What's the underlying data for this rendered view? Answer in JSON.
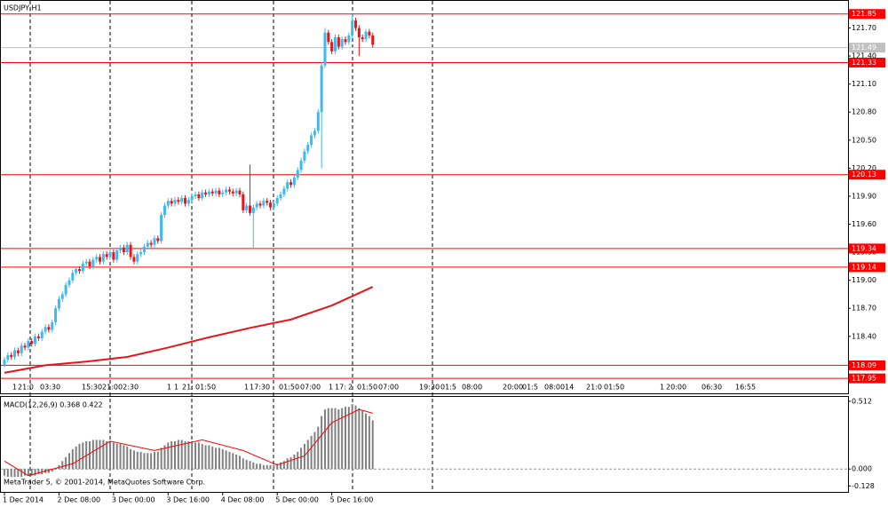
{
  "chart_data": {
    "type": "candlestick",
    "title": "USDJPY,H1",
    "up_color": "#3cb9ef",
    "down_color": "#e8141a",
    "categories": [
      "1 Dec 2014",
      null,
      null,
      null,
      null,
      null,
      null,
      null,
      null,
      null,
      null,
      null,
      null,
      null,
      null,
      null,
      "2 Dec 08:00",
      null,
      null,
      null,
      null,
      null,
      null,
      null,
      null,
      null,
      null,
      null,
      null,
      null,
      null,
      null,
      "3 Dec 00:00",
      null,
      null,
      null,
      null,
      null,
      null,
      null,
      null,
      null,
      null,
      null,
      null,
      null,
      null,
      null,
      "3 Dec 16:00",
      null,
      null,
      null,
      null,
      null,
      null,
      null,
      null,
      null,
      null,
      null,
      null,
      null,
      null,
      null,
      "4 Dec 08:00",
      null,
      null,
      null,
      null,
      null,
      null,
      null,
      null,
      null,
      null,
      null,
      null,
      null,
      null,
      null,
      "5 Dec 00:00",
      null,
      null,
      null,
      null,
      null,
      null,
      null,
      null,
      null,
      null,
      null,
      null,
      null,
      null,
      null,
      "5 Dec 16:00",
      null,
      null,
      null,
      null,
      null,
      null,
      null,
      null,
      null,
      null,
      null,
      null
    ],
    "candles": [
      [
        118.1,
        118.18,
        118.07,
        118.15
      ],
      [
        118.15,
        118.23,
        118.12,
        118.2
      ],
      [
        118.2,
        118.23,
        118.15,
        118.18
      ],
      [
        118.18,
        118.28,
        118.15,
        118.25
      ],
      [
        118.25,
        118.28,
        118.19,
        118.22
      ],
      [
        118.22,
        118.33,
        118.19,
        118.3
      ],
      [
        118.3,
        118.33,
        118.25,
        118.28
      ],
      [
        118.28,
        118.38,
        118.25,
        118.35
      ],
      [
        118.35,
        118.38,
        118.29,
        118.32
      ],
      [
        118.32,
        118.43,
        118.29,
        118.4
      ],
      [
        118.4,
        118.43,
        118.35,
        118.38
      ],
      [
        118.38,
        118.48,
        118.35,
        118.45
      ],
      [
        118.45,
        118.53,
        118.42,
        118.5
      ],
      [
        118.5,
        118.53,
        118.44,
        118.47
      ],
      [
        118.47,
        118.58,
        118.44,
        118.55
      ],
      [
        118.55,
        118.73,
        118.52,
        118.7
      ],
      [
        118.7,
        118.83,
        118.67,
        118.8
      ],
      [
        118.8,
        118.88,
        118.77,
        118.85
      ],
      [
        118.85,
        118.98,
        118.82,
        118.95
      ],
      [
        118.95,
        119.03,
        118.92,
        119.0
      ],
      [
        119.0,
        119.11,
        118.97,
        119.08
      ],
      [
        119.08,
        119.15,
        119.05,
        119.12
      ],
      [
        119.12,
        119.15,
        119.07,
        119.1
      ],
      [
        119.1,
        119.21,
        119.07,
        119.18
      ],
      [
        119.18,
        119.23,
        119.15,
        119.2
      ],
      [
        119.2,
        119.23,
        119.12,
        119.15
      ],
      [
        119.15,
        119.25,
        119.12,
        119.22
      ],
      [
        119.22,
        119.28,
        119.19,
        119.25
      ],
      [
        119.25,
        119.28,
        119.17,
        119.2
      ],
      [
        119.2,
        119.31,
        119.17,
        119.28
      ],
      [
        119.28,
        119.31,
        119.22,
        119.25
      ],
      [
        119.25,
        119.33,
        119.22,
        119.3
      ],
      [
        119.3,
        119.33,
        119.19,
        119.22
      ],
      [
        119.22,
        119.35,
        119.19,
        119.32
      ],
      [
        119.32,
        119.38,
        119.29,
        119.35
      ],
      [
        119.35,
        119.38,
        119.27,
        119.3
      ],
      [
        119.3,
        119.41,
        119.27,
        119.38
      ],
      [
        119.38,
        119.41,
        119.22,
        119.25
      ],
      [
        119.25,
        119.28,
        119.17,
        119.2
      ],
      [
        119.2,
        119.31,
        119.17,
        119.28
      ],
      [
        119.28,
        119.33,
        119.25,
        119.3
      ],
      [
        119.3,
        119.39,
        119.27,
        119.36
      ],
      [
        119.36,
        119.43,
        119.33,
        119.4
      ],
      [
        119.4,
        119.43,
        119.35,
        119.38
      ],
      [
        119.38,
        119.48,
        119.35,
        119.45
      ],
      [
        119.45,
        119.48,
        119.39,
        119.42
      ],
      [
        119.42,
        119.73,
        119.39,
        119.7
      ],
      [
        119.7,
        119.83,
        119.67,
        119.8
      ],
      [
        119.8,
        119.88,
        119.77,
        119.85
      ],
      [
        119.85,
        119.88,
        119.79,
        119.82
      ],
      [
        119.82,
        119.89,
        119.79,
        119.86
      ],
      [
        119.86,
        119.89,
        119.81,
        119.84
      ],
      [
        119.84,
        119.91,
        119.81,
        119.88
      ],
      [
        119.88,
        119.91,
        119.79,
        119.82
      ],
      [
        119.82,
        119.89,
        119.79,
        119.86
      ],
      [
        119.86,
        119.93,
        119.83,
        119.9
      ],
      [
        119.9,
        119.95,
        119.87,
        119.92
      ],
      [
        119.92,
        119.95,
        119.85,
        119.88
      ],
      [
        119.88,
        119.97,
        119.85,
        119.94
      ],
      [
        119.94,
        119.97,
        119.89,
        119.92
      ],
      [
        119.92,
        119.98,
        119.89,
        119.95
      ],
      [
        119.95,
        119.98,
        119.9,
        119.93
      ],
      [
        119.93,
        119.99,
        119.9,
        119.96
      ],
      [
        119.96,
        119.99,
        119.89,
        119.92
      ],
      [
        119.92,
        119.97,
        119.89,
        119.94
      ],
      [
        119.94,
        120.0,
        119.91,
        119.97
      ],
      [
        119.97,
        120.0,
        119.92,
        119.95
      ],
      [
        119.95,
        119.98,
        119.9,
        119.93
      ],
      [
        119.93,
        119.99,
        119.9,
        119.96
      ],
      [
        119.96,
        119.99,
        119.89,
        119.92
      ],
      [
        119.92,
        119.95,
        119.72,
        119.75
      ],
      [
        119.75,
        119.83,
        119.72,
        119.8
      ],
      [
        119.8,
        120.24,
        119.69,
        119.72
      ],
      [
        119.72,
        119.81,
        119.35,
        119.78
      ],
      [
        119.78,
        119.85,
        119.75,
        119.82
      ],
      [
        119.82,
        119.85,
        119.77,
        119.8
      ],
      [
        119.8,
        119.88,
        119.77,
        119.85
      ],
      [
        119.85,
        119.88,
        119.8,
        119.83
      ],
      [
        119.83,
        119.86,
        119.75,
        119.78
      ],
      [
        119.78,
        119.85,
        119.75,
        119.82
      ],
      [
        119.82,
        119.91,
        119.79,
        119.88
      ],
      [
        119.88,
        119.95,
        119.85,
        119.92
      ],
      [
        119.92,
        120.01,
        119.89,
        119.98
      ],
      [
        119.98,
        120.08,
        119.95,
        120.05
      ],
      [
        120.05,
        120.08,
        119.99,
        120.02
      ],
      [
        120.02,
        120.13,
        119.99,
        120.1
      ],
      [
        120.1,
        120.21,
        120.07,
        120.18
      ],
      [
        120.18,
        120.31,
        120.15,
        120.28
      ],
      [
        120.28,
        120.41,
        120.25,
        120.38
      ],
      [
        120.38,
        120.48,
        120.35,
        120.45
      ],
      [
        120.45,
        120.58,
        120.42,
        120.55
      ],
      [
        120.55,
        120.63,
        120.52,
        120.6
      ],
      [
        120.6,
        120.83,
        120.57,
        120.8
      ],
      [
        120.8,
        121.33,
        120.2,
        121.3
      ],
      [
        121.3,
        121.7,
        121.27,
        121.65
      ],
      [
        121.65,
        121.68,
        121.52,
        121.55
      ],
      [
        121.55,
        121.58,
        121.42,
        121.45
      ],
      [
        121.45,
        121.63,
        121.42,
        121.6
      ],
      [
        121.6,
        121.63,
        121.47,
        121.5
      ],
      [
        121.5,
        121.61,
        121.47,
        121.58
      ],
      [
        121.58,
        121.61,
        121.52,
        121.55
      ],
      [
        121.55,
        121.65,
        121.52,
        121.62
      ],
      [
        121.62,
        121.85,
        121.59,
        121.78
      ],
      [
        121.78,
        121.81,
        121.67,
        121.7
      ],
      [
        121.7,
        121.73,
        121.4,
        121.6
      ],
      [
        121.6,
        121.63,
        121.55,
        121.58
      ],
      [
        121.58,
        121.69,
        121.55,
        121.66
      ],
      [
        121.66,
        121.69,
        121.59,
        121.62
      ],
      [
        121.62,
        121.65,
        121.49,
        121.52
      ]
    ],
    "ylim": [
      117.79,
      121.99
    ],
    "yticks": [
      {
        "value": 121.7,
        "label": "121.70"
      },
      {
        "value": 121.4,
        "label": "121.40"
      },
      {
        "value": 121.1,
        "label": "121.10"
      },
      {
        "value": 120.8,
        "label": "120.80"
      },
      {
        "value": 120.5,
        "label": "120.50"
      },
      {
        "value": 120.2,
        "label": "120.20"
      },
      {
        "value": 119.9,
        "label": "119.90"
      },
      {
        "value": 119.6,
        "label": "119.60"
      },
      {
        "value": 119.3,
        "label": "119.30"
      },
      {
        "value": 119,
        "label": "119.00"
      },
      {
        "value": 118.7,
        "label": "118.70"
      },
      {
        "value": 118.4,
        "label": "118.40"
      },
      {
        "value": 118.1,
        "label": "118.10"
      }
    ],
    "ma": {
      "x": [
        0,
        12,
        24,
        36,
        48,
        60,
        72,
        84,
        96,
        108
      ],
      "values": [
        118.01,
        118.09,
        118.13,
        118.18,
        118.28,
        118.39,
        118.49,
        118.58,
        118.73,
        118.93
      ],
      "color": "#e8141a"
    },
    "levels": [
      {
        "value": 121.85,
        "label": "121.85"
      },
      {
        "value": 121.33,
        "label": "121.33"
      },
      {
        "value": 120.13,
        "label": "120.13"
      },
      {
        "value": 119.34,
        "label": "119.34"
      },
      {
        "value": 119.14,
        "label": "119.14"
      },
      {
        "value": 118.09,
        "label": "118.09"
      },
      {
        "value": 117.95,
        "label": "117.95"
      }
    ],
    "level_color": "#ff0000",
    "bid": {
      "value": 121.49,
      "label": "121.49"
    },
    "bid_color": "#c0c0c0",
    "trade_labels": [
      "1",
      "21:0",
      "03:30",
      "15:30",
      "21:0",
      "02:30",
      "1",
      "1",
      "21:",
      "01:50",
      "1",
      "17:30",
      "01:50",
      "07:00",
      "1",
      "17:",
      "2",
      "01:50",
      "07:00",
      "19:30",
      "01:5",
      "08:00",
      "20:00",
      "01:5",
      "08:00",
      "14",
      "21:0",
      "01:50",
      "1",
      "20:00",
      "06:30",
      "16:55"
    ],
    "indicator": {
      "type": "bar",
      "title": "MACD(12,26,9) 0.368 0.422",
      "color": "#808080",
      "values": [
        -0.05,
        -0.06,
        -0.06,
        -0.06,
        -0.06,
        -0.06,
        -0.05,
        -0.05,
        -0.05,
        -0.05,
        -0.04,
        -0.04,
        -0.03,
        -0.03,
        -0.02,
        0.0,
        0.03,
        0.06,
        0.09,
        0.12,
        0.15,
        0.17,
        0.19,
        0.2,
        0.21,
        0.21,
        0.22,
        0.22,
        0.22,
        0.22,
        0.21,
        0.21,
        0.2,
        0.19,
        0.19,
        0.18,
        0.17,
        0.15,
        0.14,
        0.13,
        0.13,
        0.12,
        0.12,
        0.12,
        0.13,
        0.13,
        0.16,
        0.18,
        0.2,
        0.21,
        0.21,
        0.22,
        0.22,
        0.21,
        0.21,
        0.21,
        0.2,
        0.2,
        0.19,
        0.18,
        0.18,
        0.17,
        0.16,
        0.16,
        0.15,
        0.14,
        0.13,
        0.12,
        0.11,
        0.1,
        0.08,
        0.07,
        0.06,
        0.05,
        0.04,
        0.04,
        0.03,
        0.03,
        0.03,
        0.03,
        0.04,
        0.05,
        0.06,
        0.08,
        0.09,
        0.11,
        0.13,
        0.16,
        0.19,
        0.22,
        0.25,
        0.28,
        0.32,
        0.4,
        0.45,
        0.46,
        0.46,
        0.46,
        0.45,
        0.46,
        0.47,
        0.47,
        0.49,
        0.48,
        0.46,
        0.44,
        0.42,
        0.4,
        0.368
      ],
      "signal": {
        "x": [
          0,
          7,
          20,
          31,
          44,
          58,
          70,
          80,
          88,
          96,
          104,
          108
        ],
        "values": [
          0.06,
          -0.05,
          0.04,
          0.21,
          0.14,
          0.22,
          0.14,
          0.03,
          0.1,
          0.35,
          0.45,
          0.422
        ],
        "color": "#ff0000"
      },
      "ylim": [
        -0.173,
        0.545
      ],
      "yticks": [
        0.512,
        {
          "value": 0,
          "label": "0.000"
        },
        -0.128
      ]
    },
    "footer": "MetaTrader 5, © 2001-2014, MetaQuotes Software Corp."
  }
}
